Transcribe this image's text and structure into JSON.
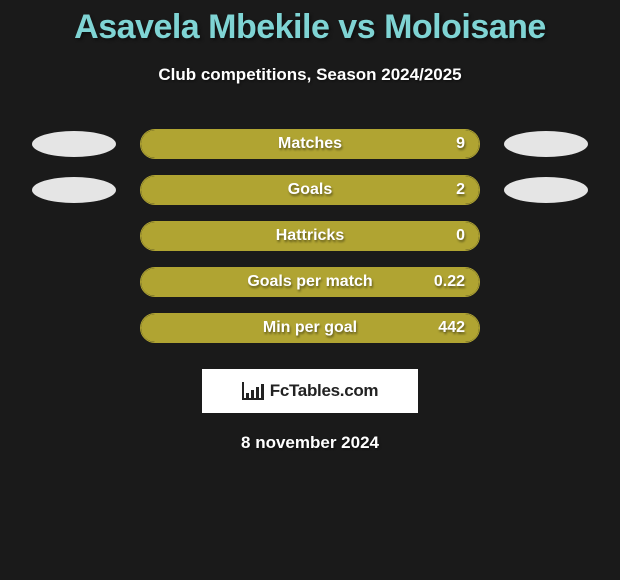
{
  "title": "Asavela Mbekile vs Moloisane",
  "subtitle": "Club competitions, Season 2024/2025",
  "colors": {
    "background": "#1a1a1a",
    "title": "#7fd4d4",
    "bar_fill": "#b0a432",
    "bar_border": "#b0a432",
    "ellipse": "#e5e5e5",
    "text": "#ffffff"
  },
  "stats": [
    {
      "label": "Matches",
      "value": "9",
      "fill_pct": 100,
      "left_ellipse": true,
      "right_ellipse": true
    },
    {
      "label": "Goals",
      "value": "2",
      "fill_pct": 100,
      "left_ellipse": true,
      "right_ellipse": true
    },
    {
      "label": "Hattricks",
      "value": "0",
      "fill_pct": 100,
      "left_ellipse": false,
      "right_ellipse": false
    },
    {
      "label": "Goals per match",
      "value": "0.22",
      "fill_pct": 100,
      "left_ellipse": false,
      "right_ellipse": false
    },
    {
      "label": "Min per goal",
      "value": "442",
      "fill_pct": 100,
      "left_ellipse": false,
      "right_ellipse": false
    }
  ],
  "logo": "FcTables.com",
  "date": "8 november 2024"
}
